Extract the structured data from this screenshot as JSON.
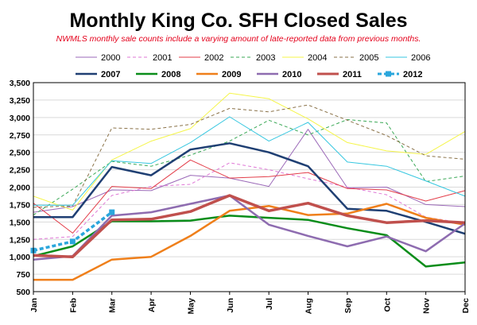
{
  "chart_data": {
    "type": "line",
    "title": "Monthly King Co. SFH Closed Sales",
    "subtitle": "NWMLS monthly sale counts include a varying amount of late-reported data from previous months.",
    "xlabel": "",
    "ylabel": "",
    "categories": [
      "Jan",
      "Feb",
      "Mar",
      "Apr",
      "May",
      "Jun",
      "Jul",
      "Aug",
      "Sep",
      "Oct",
      "Nov",
      "Dec"
    ],
    "ylim": [
      500,
      3500
    ],
    "yticks": [
      "500",
      "750",
      "1,000",
      "1,250",
      "1,500",
      "1,750",
      "2,000",
      "2,250",
      "2,500",
      "2,750",
      "3,000",
      "3,250",
      "3,500"
    ],
    "grid": "horizontal",
    "legend_position": "top",
    "series": [
      {
        "name": "2000",
        "color": "#9b69b8",
        "dash": "",
        "width": 1,
        "values": [
          1640,
          1720,
          1960,
          1950,
          2170,
          2130,
          2010,
          2830,
          1990,
          2000,
          1750,
          1720
        ]
      },
      {
        "name": "2001",
        "color": "#df77d6",
        "dash": "4,3",
        "width": 1,
        "values": [
          1250,
          1290,
          1880,
          2010,
          2040,
          2350,
          2250,
          2120,
          2000,
          1890,
          1570,
          1480
        ]
      },
      {
        "name": "2002",
        "color": "#e33e4a",
        "dash": "",
        "width": 1,
        "values": [
          1770,
          1340,
          2010,
          1980,
          2390,
          2130,
          2150,
          2210,
          1980,
          1960,
          1800,
          1950
        ]
      },
      {
        "name": "2003",
        "color": "#3aa856",
        "dash": "4,3",
        "width": 1,
        "values": [
          1600,
          1970,
          2370,
          2300,
          2460,
          2660,
          2960,
          2750,
          2970,
          2920,
          2080,
          2160
        ]
      },
      {
        "name": "2004",
        "color": "#f5f54a",
        "dash": "",
        "width": 1,
        "values": [
          1870,
          1670,
          2390,
          2660,
          2840,
          3350,
          3270,
          2980,
          2640,
          2520,
          2470,
          2800
        ]
      },
      {
        "name": "2005",
        "color": "#8a7248",
        "dash": "4,3",
        "width": 1,
        "values": [
          1710,
          1730,
          2850,
          2830,
          2900,
          3130,
          3080,
          3180,
          2960,
          2740,
          2450,
          2400
        ]
      },
      {
        "name": "2006",
        "color": "#37c7e0",
        "dash": "",
        "width": 1,
        "values": [
          1740,
          1740,
          2380,
          2340,
          2640,
          3010,
          2660,
          2930,
          2360,
          2300,
          2090,
          1870
        ]
      },
      {
        "name": "2007",
        "color": "#1f3f73",
        "dash": "",
        "width": 2.5,
        "values": [
          1570,
          1570,
          2290,
          2170,
          2540,
          2630,
          2500,
          2300,
          1690,
          1660,
          1500,
          1330
        ]
      },
      {
        "name": "2008",
        "color": "#0a8d1a",
        "dash": "",
        "width": 2.5,
        "values": [
          1010,
          1150,
          1510,
          1510,
          1520,
          1590,
          1560,
          1530,
          1410,
          1310,
          860,
          920
        ]
      },
      {
        "name": "2009",
        "color": "#ef7f1a",
        "dash": "",
        "width": 2.5,
        "values": [
          670,
          670,
          960,
          1000,
          1300,
          1660,
          1730,
          1600,
          1620,
          1760,
          1560,
          1460
        ]
      },
      {
        "name": "2010",
        "color": "#8e6cb0",
        "dash": "",
        "width": 2.5,
        "values": [
          960,
          1010,
          1590,
          1640,
          1760,
          1880,
          1460,
          1300,
          1150,
          1290,
          1080,
          1480
        ]
      },
      {
        "name": "2011",
        "color": "#c0504d",
        "dash": "",
        "width": 3.5,
        "values": [
          1020,
          1000,
          1530,
          1540,
          1650,
          1880,
          1660,
          1770,
          1590,
          1490,
          1520,
          1490
        ]
      },
      {
        "name": "2012",
        "color": "#2aa6dc",
        "dash": "5,3",
        "width": 3.5,
        "marker": "square",
        "values": [
          1090,
          1220,
          1640,
          null,
          null,
          null,
          null,
          null,
          null,
          null,
          null,
          null
        ]
      }
    ]
  }
}
